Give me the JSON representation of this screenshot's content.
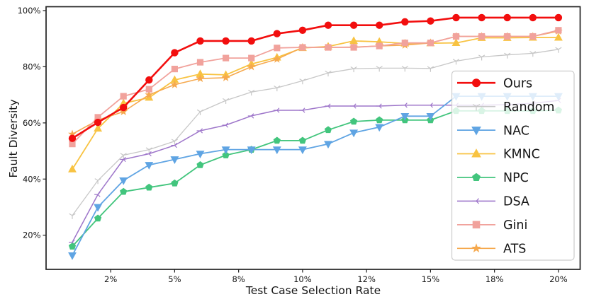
{
  "chart_data": {
    "type": "line",
    "title": "",
    "xlabel": "Test Case Selection Rate",
    "ylabel": "Fault Diversity",
    "grid": false,
    "background": "#ffffff",
    "spine_color": "#222222",
    "legend": {
      "position": "right-center",
      "border_color": "#cccccc",
      "fill": "#ffffff",
      "fill_opacity": 0.8
    },
    "x_points_count": 20,
    "x_ticks": [
      {
        "label": "2%",
        "index": 1.5
      },
      {
        "label": "5%",
        "index": 4
      },
      {
        "label": "8%",
        "index": 6.5
      },
      {
        "label": "10%",
        "index": 9
      },
      {
        "label": "12%",
        "index": 11.5
      },
      {
        "label": "15%",
        "index": 14
      },
      {
        "label": "18%",
        "index": 16.5
      },
      {
        "label": "20%",
        "index": 19
      }
    ],
    "y_ticks": [
      {
        "label": "20%",
        "value": 20
      },
      {
        "label": "40%",
        "value": 40
      },
      {
        "label": "60%",
        "value": 60
      },
      {
        "label": "80%",
        "value": 80
      },
      {
        "label": "100%",
        "value": 100
      }
    ],
    "ylim": [
      7.8,
      101.4
    ],
    "draw_order": [
      "Random",
      "DSA",
      "NPC",
      "NAC",
      "KMNC",
      "ATS",
      "Gini",
      "Ours"
    ],
    "series": [
      {
        "name": "Ours",
        "color": "#f20e0e",
        "marker": "circle",
        "line_width": 2.6,
        "marker_size": 5.2,
        "values": [
          54.5,
          60.2,
          65.5,
          75.3,
          85.0,
          89.2,
          89.2,
          89.2,
          91.8,
          93.0,
          94.8,
          94.8,
          94.8,
          96.0,
          96.3,
          97.5,
          97.5,
          97.5,
          97.5,
          97.5
        ]
      },
      {
        "name": "Random",
        "color": "#c7c7c7",
        "marker": "tri-down-thin",
        "line_width": 1.3,
        "marker_size": 4.3,
        "values": [
          27.0,
          39.5,
          48.5,
          50.5,
          53.5,
          64.0,
          68.0,
          71.0,
          72.5,
          75.0,
          77.8,
          79.3,
          79.5,
          79.5,
          79.4,
          82.0,
          83.5,
          84.2,
          84.8,
          86.2
        ]
      },
      {
        "name": "NAC",
        "color": "#5fa4e3",
        "marker": "triangle-down",
        "line_width": 1.8,
        "marker_size": 5.4,
        "values": [
          12.8,
          30.0,
          39.5,
          45.0,
          47.0,
          49.0,
          50.5,
          50.5,
          50.5,
          50.5,
          52.5,
          56.5,
          58.5,
          62.4,
          62.4,
          69.5,
          69.5,
          69.5,
          69.5,
          69.5
        ]
      },
      {
        "name": "KMNC",
        "color": "#f8c342",
        "marker": "triangle-up",
        "line_width": 1.8,
        "marker_size": 5.4,
        "values": [
          43.5,
          58.0,
          67.0,
          69.0,
          75.3,
          77.4,
          77.1,
          81.0,
          83.3,
          86.7,
          87.2,
          89.2,
          88.9,
          88.3,
          88.4,
          88.5,
          90.3,
          90.3,
          90.4,
          90.4
        ]
      },
      {
        "name": "NPC",
        "color": "#42c57d",
        "marker": "pentagon",
        "line_width": 1.8,
        "marker_size": 4.9,
        "values": [
          16.0,
          26.0,
          35.5,
          37.0,
          38.5,
          45.0,
          48.5,
          50.5,
          53.7,
          53.7,
          57.5,
          60.5,
          61.0,
          61.0,
          61.0,
          64.3,
          64.3,
          64.3,
          64.3,
          64.5
        ]
      },
      {
        "name": "DSA",
        "color": "#9e76ca",
        "marker": "tri-left-thin",
        "line_width": 1.5,
        "marker_size": 4.3,
        "values": [
          17.5,
          34.5,
          47.0,
          49.0,
          52.0,
          57.2,
          59.2,
          62.5,
          64.5,
          64.5,
          66.0,
          66.0,
          66.0,
          66.3,
          66.3,
          66.3,
          66.3,
          66.5,
          67.0,
          68.0
        ]
      },
      {
        "name": "Gini",
        "color": "#f1a29c",
        "marker": "square",
        "line_width": 1.8,
        "marker_size": 4.6,
        "values": [
          52.5,
          62.0,
          69.5,
          72.0,
          79.2,
          81.6,
          83.1,
          83.1,
          86.7,
          86.9,
          86.9,
          86.9,
          87.4,
          88.5,
          88.5,
          90.8,
          90.8,
          90.8,
          90.8,
          93.0
        ]
      },
      {
        "name": "ATS",
        "color": "#f6a94e",
        "marker": "star",
        "line_width": 1.6,
        "marker_size": 5.0,
        "values": [
          56.0,
          61.0,
          64.0,
          70.0,
          73.6,
          75.8,
          76.1,
          80.0,
          82.7,
          86.9,
          86.9,
          87.0,
          87.4,
          87.7,
          88.5,
          90.8,
          90.8,
          90.8,
          90.8,
          92.7
        ]
      }
    ]
  }
}
